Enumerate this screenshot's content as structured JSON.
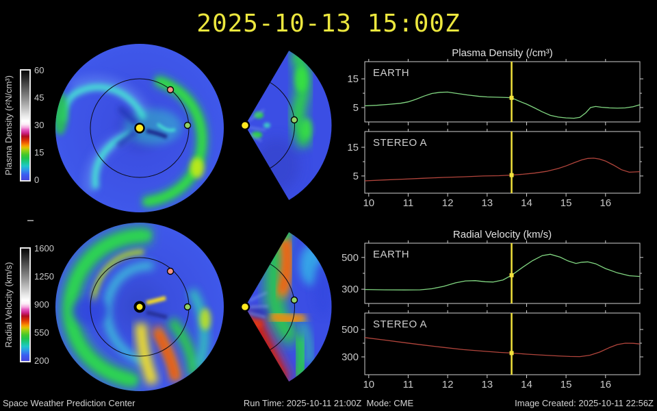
{
  "title": "2025-10-13 15:00Z",
  "status_bar": {
    "left": "Space Weather Prediction Center",
    "center": "Run Time: 2025-10-11 21:00Z  Mode: CME",
    "right": "Image Created: 2025-10-11 22:56Z"
  },
  "colorbars": [
    {
      "label": "Plasma Density (r²N/cm³)",
      "ticks": [
        "60",
        "45",
        "30",
        "15",
        "0"
      ]
    },
    {
      "label": "Radial Velocity (km/s)",
      "ticks": [
        "1600",
        "1250",
        "900",
        "550",
        "200"
      ]
    }
  ],
  "planets": {
    "sun": {
      "color": "#ffe820"
    },
    "earth": {
      "label": "EARTH",
      "color": "#92d268"
    },
    "stereo_a": {
      "label": "STEREO A",
      "color": "#f29384"
    }
  },
  "chart_data": [
    {
      "type": "line",
      "title": "Plasma Density (/cm³)",
      "xlim": [
        9.9,
        16.87
      ],
      "xticks": [
        10,
        11,
        12,
        13,
        14,
        15,
        16
      ],
      "xtick_labels": [
        "10",
        "11",
        "12",
        "13",
        "14",
        "15",
        "16"
      ],
      "cursor_x": 13.62,
      "cursor_color": "#f2e23c",
      "panels": [
        {
          "label": "EARTH",
          "color": "#82d882",
          "ylim": [
            0,
            21
          ],
          "yticks": [
            5,
            10,
            15
          ],
          "ytick_labels": [
            "5",
            "",
            "15"
          ],
          "cursor_y": 8.4,
          "x": [
            9.9,
            10.2,
            10.5,
            10.8,
            11.0,
            11.2,
            11.4,
            11.6,
            11.8,
            12.0,
            12.2,
            12.5,
            12.8,
            13.0,
            13.3,
            13.5,
            13.62,
            13.8,
            14.0,
            14.2,
            14.4,
            14.6,
            14.8,
            15.0,
            15.2,
            15.35,
            15.5,
            15.62,
            15.75,
            15.9,
            16.1,
            16.3,
            16.5,
            16.7,
            16.87
          ],
          "y": [
            5.6,
            5.8,
            6.1,
            6.5,
            7.0,
            7.9,
            9.0,
            9.9,
            10.3,
            10.4,
            10.0,
            9.4,
            8.9,
            8.7,
            8.6,
            8.5,
            8.4,
            7.3,
            6.2,
            4.9,
            3.5,
            2.3,
            1.7,
            1.4,
            1.3,
            1.6,
            3.2,
            5.0,
            5.4,
            5.1,
            4.9,
            4.8,
            4.9,
            5.3,
            6.0
          ]
        },
        {
          "label": "STEREO A",
          "color": "#b2453c",
          "ylim": [
            -1,
            20.5
          ],
          "yticks": [
            5,
            10,
            15
          ],
          "ytick_labels": [
            "5",
            "",
            "15"
          ],
          "cursor_y": 5.3,
          "x": [
            9.9,
            10.4,
            10.9,
            11.4,
            11.9,
            12.4,
            12.9,
            13.3,
            13.62,
            13.9,
            14.2,
            14.5,
            14.8,
            15.0,
            15.2,
            15.4,
            15.55,
            15.7,
            15.85,
            16.0,
            16.2,
            16.4,
            16.6,
            16.87
          ],
          "y": [
            3.3,
            3.6,
            3.9,
            4.2,
            4.5,
            4.7,
            5.0,
            5.1,
            5.3,
            5.6,
            6.0,
            6.6,
            7.6,
            8.5,
            9.6,
            10.6,
            11.1,
            11.2,
            10.9,
            10.2,
            8.8,
            7.2,
            6.3,
            6.5
          ]
        }
      ]
    },
    {
      "type": "line",
      "title": "Radial Velocity (km/s)",
      "xlim": [
        9.9,
        16.87
      ],
      "xticks": [
        10,
        11,
        12,
        13,
        14,
        15,
        16
      ],
      "xtick_labels": [
        "10",
        "11",
        "12",
        "13",
        "14",
        "15",
        "16"
      ],
      "cursor_x": 13.62,
      "cursor_color": "#f2e23c",
      "panels": [
        {
          "label": "EARTH",
          "color": "#82d882",
          "ylim": [
            210,
            590
          ],
          "yticks": [
            300,
            400,
            500
          ],
          "ytick_labels": [
            "300",
            "",
            "500"
          ],
          "cursor_y": 388,
          "x": [
            9.9,
            10.4,
            10.9,
            11.3,
            11.6,
            11.9,
            12.2,
            12.45,
            12.7,
            12.95,
            13.15,
            13.4,
            13.62,
            13.9,
            14.15,
            14.4,
            14.6,
            14.85,
            15.05,
            15.25,
            15.4,
            15.55,
            15.75,
            16.0,
            16.3,
            16.6,
            16.87
          ],
          "y": [
            298,
            296,
            295,
            296,
            303,
            318,
            340,
            352,
            354,
            347,
            345,
            358,
            388,
            438,
            480,
            512,
            520,
            502,
            478,
            462,
            470,
            472,
            460,
            430,
            403,
            385,
            380
          ]
        },
        {
          "label": "STEREO A",
          "color": "#b2453c",
          "ylim": [
            170,
            620
          ],
          "yticks": [
            300,
            400,
            500
          ],
          "ytick_labels": [
            "300",
            "",
            "500"
          ],
          "cursor_y": 328,
          "x": [
            9.9,
            10.4,
            10.9,
            11.4,
            11.9,
            12.4,
            12.9,
            13.3,
            13.62,
            14.0,
            14.4,
            14.8,
            15.1,
            15.35,
            15.6,
            15.85,
            16.1,
            16.3,
            16.5,
            16.7,
            16.87
          ],
          "y": [
            441,
            423,
            404,
            386,
            369,
            353,
            342,
            333,
            328,
            320,
            313,
            307,
            303,
            302,
            312,
            335,
            368,
            390,
            400,
            399,
            394
          ]
        }
      ]
    }
  ]
}
